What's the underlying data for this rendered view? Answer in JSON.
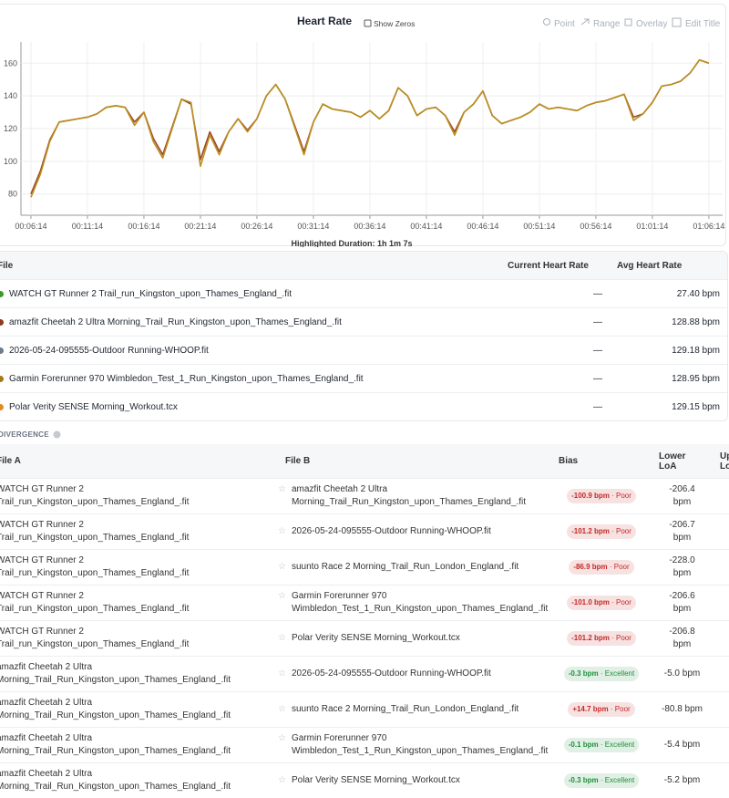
{
  "header": {
    "title": "Heart Rate",
    "show_zeros": "Show Zeros",
    "tools": [
      "Point",
      "Range",
      "Overlay",
      "Edit Title"
    ]
  },
  "chart_data": {
    "type": "line",
    "x": [
      374,
      424,
      474,
      524,
      574,
      624,
      674,
      724,
      774,
      824,
      874,
      924,
      974,
      1024,
      1074,
      1124,
      1174,
      1224,
      1274,
      1324,
      1374,
      1424,
      1474,
      1524,
      1574,
      1624,
      1674,
      1724,
      1774,
      1824,
      1874,
      1924,
      1974,
      2024,
      2074,
      2124,
      2174,
      2224,
      2274,
      2324,
      2374,
      2424,
      2474,
      2524,
      2574,
      2624,
      2674,
      2724,
      2774,
      2824,
      2874,
      2924,
      2974,
      3024,
      3074,
      3124,
      3174,
      3224,
      3274,
      3324,
      3374,
      3424,
      3474,
      3524,
      3574,
      3624,
      3674,
      3724,
      3774,
      3824,
      3874,
      3924,
      3974
    ],
    "series": [
      {
        "color": "#a0452a",
        "values": [
          80,
          94,
          113,
          124,
          125,
          126,
          127,
          129,
          133,
          134,
          133,
          124,
          130,
          114,
          104,
          121,
          138,
          135,
          101,
          118,
          106,
          118,
          126,
          119,
          126,
          140,
          147,
          138,
          122,
          106,
          124,
          135,
          132,
          131,
          130,
          127,
          131,
          126,
          131,
          145,
          140,
          128,
          132,
          133,
          128,
          118,
          130,
          135,
          143,
          128,
          123,
          125,
          127,
          130,
          135,
          132,
          133,
          132,
          131,
          134,
          136,
          137,
          139,
          141,
          127,
          129,
          136,
          146,
          147,
          149,
          154,
          162,
          160
        ]
      },
      {
        "color": "#b8901f",
        "values": [
          78,
          92,
          112,
          124,
          125,
          126,
          127,
          129,
          133,
          134,
          133,
          122,
          130,
          112,
          102,
          120,
          138,
          136,
          97,
          116,
          104,
          118,
          126,
          118,
          126,
          140,
          147,
          138,
          121,
          104,
          124,
          135,
          132,
          131,
          130,
          127,
          131,
          126,
          131,
          145,
          140,
          128,
          132,
          133,
          128,
          116,
          130,
          135,
          143,
          128,
          123,
          125,
          127,
          130,
          135,
          132,
          133,
          132,
          131,
          134,
          136,
          137,
          139,
          141,
          125,
          129,
          136,
          146,
          147,
          149,
          154,
          162,
          160
        ]
      }
    ],
    "xlim": [
      321,
      4047
    ],
    "ylim": [
      67,
      173
    ],
    "xticks": [
      {
        "value": 374,
        "label": "00:06:14"
      },
      {
        "value": 674,
        "label": "00:11:14"
      },
      {
        "value": 974,
        "label": "00:16:14"
      },
      {
        "value": 1274,
        "label": "00:21:14"
      },
      {
        "value": 1574,
        "label": "00:26:14"
      },
      {
        "value": 1874,
        "label": "00:31:14"
      },
      {
        "value": 2174,
        "label": "00:36:14"
      },
      {
        "value": 2474,
        "label": "00:41:14"
      },
      {
        "value": 2774,
        "label": "00:46:14"
      },
      {
        "value": 3074,
        "label": "00:51:14"
      },
      {
        "value": 3374,
        "label": "00:56:14"
      },
      {
        "value": 3674,
        "label": "01:01:14"
      },
      {
        "value": 3974,
        "label": "01:06:14"
      }
    ],
    "yticks": [
      80,
      100,
      120,
      140,
      160
    ],
    "grid": true
  },
  "highlighted": "Highlighted Duration: 1h 1m 7s",
  "files": {
    "columns": [
      "File",
      "Current Heart Rate",
      "Avg Heart Rate"
    ],
    "rows": [
      {
        "name": "WATCH GT Runner 2 Trail_run_Kingston_upon_Thames_England_.fit",
        "color": "#3d9a2a",
        "current": "—",
        "avg": "27.40 bpm"
      },
      {
        "name": "amazfit Cheetah 2 Ultra Morning_Trail_Run_Kingston_upon_Thames_England_.fit",
        "color": "#8e3a1c",
        "current": "—",
        "avg": "128.88 bpm"
      },
      {
        "name": "2026-05-24-095555-Outdoor Running-WHOOP.fit",
        "color": "#6d7c8a",
        "current": "—",
        "avg": "129.18 bpm"
      },
      {
        "name": "Garmin Forerunner 970 Wimbledon_Test_1_Run_Kingston_upon_Thames_England_.fit",
        "color": "#a47a1c",
        "current": "—",
        "avg": "128.95 bpm"
      },
      {
        "name": "Polar Verity SENSE Morning_Workout.tcx",
        "color": "#e08d1e",
        "current": "—",
        "avg": "129.15 bpm"
      }
    ]
  },
  "divergence": {
    "title": "DIVERGENCE",
    "columns": [
      "File A",
      "File B",
      "Bias",
      "Lower LoA",
      "Upper LoA"
    ],
    "rows": [
      {
        "file_a": "WATCH GT Runner 2 Trail_run_Kingston_upon_Thames_England_.fit",
        "file_b": "amazfit Cheetah 2 Ultra Morning_Trail_Run_Kingston_upon_Thames_England_.fit",
        "bias": "-100.9 bpm",
        "quality": "Poor",
        "color": "#c62828",
        "lower": "-206.4 bpm"
      },
      {
        "file_a": "WATCH GT Runner 2 Trail_run_Kingston_upon_Thames_England_.fit",
        "file_b": "2026-05-24-095555-Outdoor Running-WHOOP.fit",
        "bias": "-101.2 bpm",
        "quality": "Poor",
        "color": "#c62828",
        "lower": "-206.7 bpm"
      },
      {
        "file_a": "WATCH GT Runner 2 Trail_run_Kingston_upon_Thames_England_.fit",
        "file_b": "suunto Race 2 Morning_Trail_Run_London_England_.fit",
        "bias": "-86.9 bpm",
        "quality": "Poor",
        "color": "#c62828",
        "lower": "-228.0 bpm"
      },
      {
        "file_a": "WATCH GT Runner 2 Trail_run_Kingston_upon_Thames_England_.fit",
        "file_b": "Garmin Forerunner 970 Wimbledon_Test_1_Run_Kingston_upon_Thames_England_.fit",
        "bias": "-101.0 bpm",
        "quality": "Poor",
        "color": "#c62828",
        "lower": "-206.6 bpm"
      },
      {
        "file_a": "WATCH GT Runner 2 Trail_run_Kingston_upon_Thames_England_.fit",
        "file_b": "Polar Verity SENSE Morning_Workout.tcx",
        "bias": "-101.2 bpm",
        "quality": "Poor",
        "color": "#c62828",
        "lower": "-206.8 bpm"
      },
      {
        "file_a": "amazfit Cheetah 2 Ultra Morning_Trail_Run_Kingston_upon_Thames_England_.fit",
        "file_b": "2026-05-24-095555-Outdoor Running-WHOOP.fit",
        "bias": "-0.3 bpm",
        "quality": "Excellent",
        "color": "#1e8e3e",
        "lower": "-5.0 bpm"
      },
      {
        "file_a": "amazfit Cheetah 2 Ultra Morning_Trail_Run_Kingston_upon_Thames_England_.fit",
        "file_b": "suunto Race 2 Morning_Trail_Run_London_England_.fit",
        "bias": "+14.7 bpm",
        "quality": "Poor",
        "color": "#c62828",
        "lower": "-80.8 bpm"
      },
      {
        "file_a": "amazfit Cheetah 2 Ultra Morning_Trail_Run_Kingston_upon_Thames_England_.fit",
        "file_b": "Garmin Forerunner 970 Wimbledon_Test_1_Run_Kingston_upon_Thames_England_.fit",
        "bias": "-0.1 bpm",
        "quality": "Excellent",
        "color": "#1e8e3e",
        "lower": "-5.4 bpm"
      },
      {
        "file_a": "amazfit Cheetah 2 Ultra Morning_Trail_Run_Kingston_upon_Thames_England_.fit",
        "file_b": "Polar Verity SENSE Morning_Workout.tcx",
        "bias": "-0.3 bpm",
        "quality": "Excellent",
        "color": "#1e8e3e",
        "lower": "-5.2 bpm"
      }
    ]
  }
}
